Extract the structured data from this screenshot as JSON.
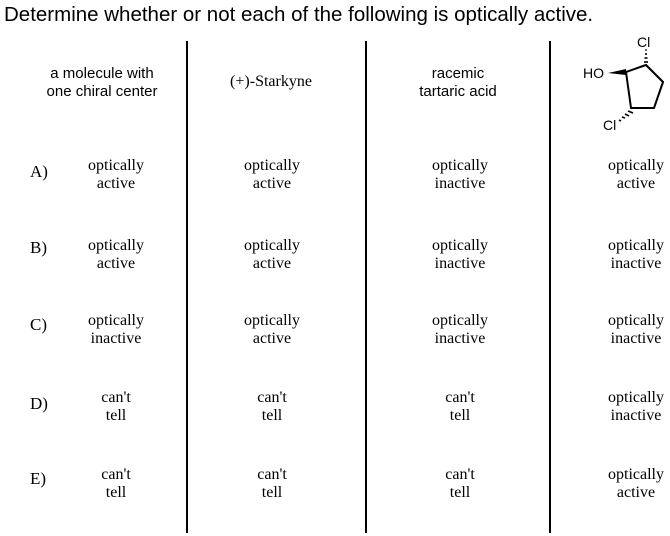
{
  "question": "Determine whether or not each of the following is optically active.",
  "headers": [
    {
      "line1": "a molecule with",
      "line2": "one chiral center"
    },
    {
      "line1": "(+)-Starkyne",
      "line2": ""
    },
    {
      "line1": "racemic",
      "line2": "tartaric acid"
    }
  ],
  "structure": {
    "label_oh": "HO",
    "label_cl_top": "Cl",
    "label_cl_bottom": "Cl"
  },
  "rows": [
    {
      "letter": "A)",
      "cells": [
        {
          "l1": "optically",
          "l2": "active"
        },
        {
          "l1": "optically",
          "l2": "active"
        },
        {
          "l1": "optically",
          "l2": "inactive"
        },
        {
          "l1": "optically",
          "l2": "active"
        }
      ]
    },
    {
      "letter": "B)",
      "cells": [
        {
          "l1": "optically",
          "l2": "active"
        },
        {
          "l1": "optically",
          "l2": "active"
        },
        {
          "l1": "optically",
          "l2": "inactive"
        },
        {
          "l1": "optically",
          "l2": "inactive"
        }
      ]
    },
    {
      "letter": "C)",
      "cells": [
        {
          "l1": "optically",
          "l2": "inactive"
        },
        {
          "l1": "optically",
          "l2": "active"
        },
        {
          "l1": "optically",
          "l2": "inactive"
        },
        {
          "l1": "optically",
          "l2": "inactive"
        }
      ]
    },
    {
      "letter": "D)",
      "cells": [
        {
          "l1": "can't",
          "l2": "tell"
        },
        {
          "l1": "can't",
          "l2": "tell"
        },
        {
          "l1": "can't",
          "l2": "tell"
        },
        {
          "l1": "optically",
          "l2": "inactive"
        }
      ]
    },
    {
      "letter": "E)",
      "cells": [
        {
          "l1": "can't",
          "l2": "tell"
        },
        {
          "l1": "can't",
          "l2": "tell"
        },
        {
          "l1": "can't",
          "l2": "tell"
        },
        {
          "l1": "optically",
          "l2": "active"
        }
      ]
    }
  ]
}
